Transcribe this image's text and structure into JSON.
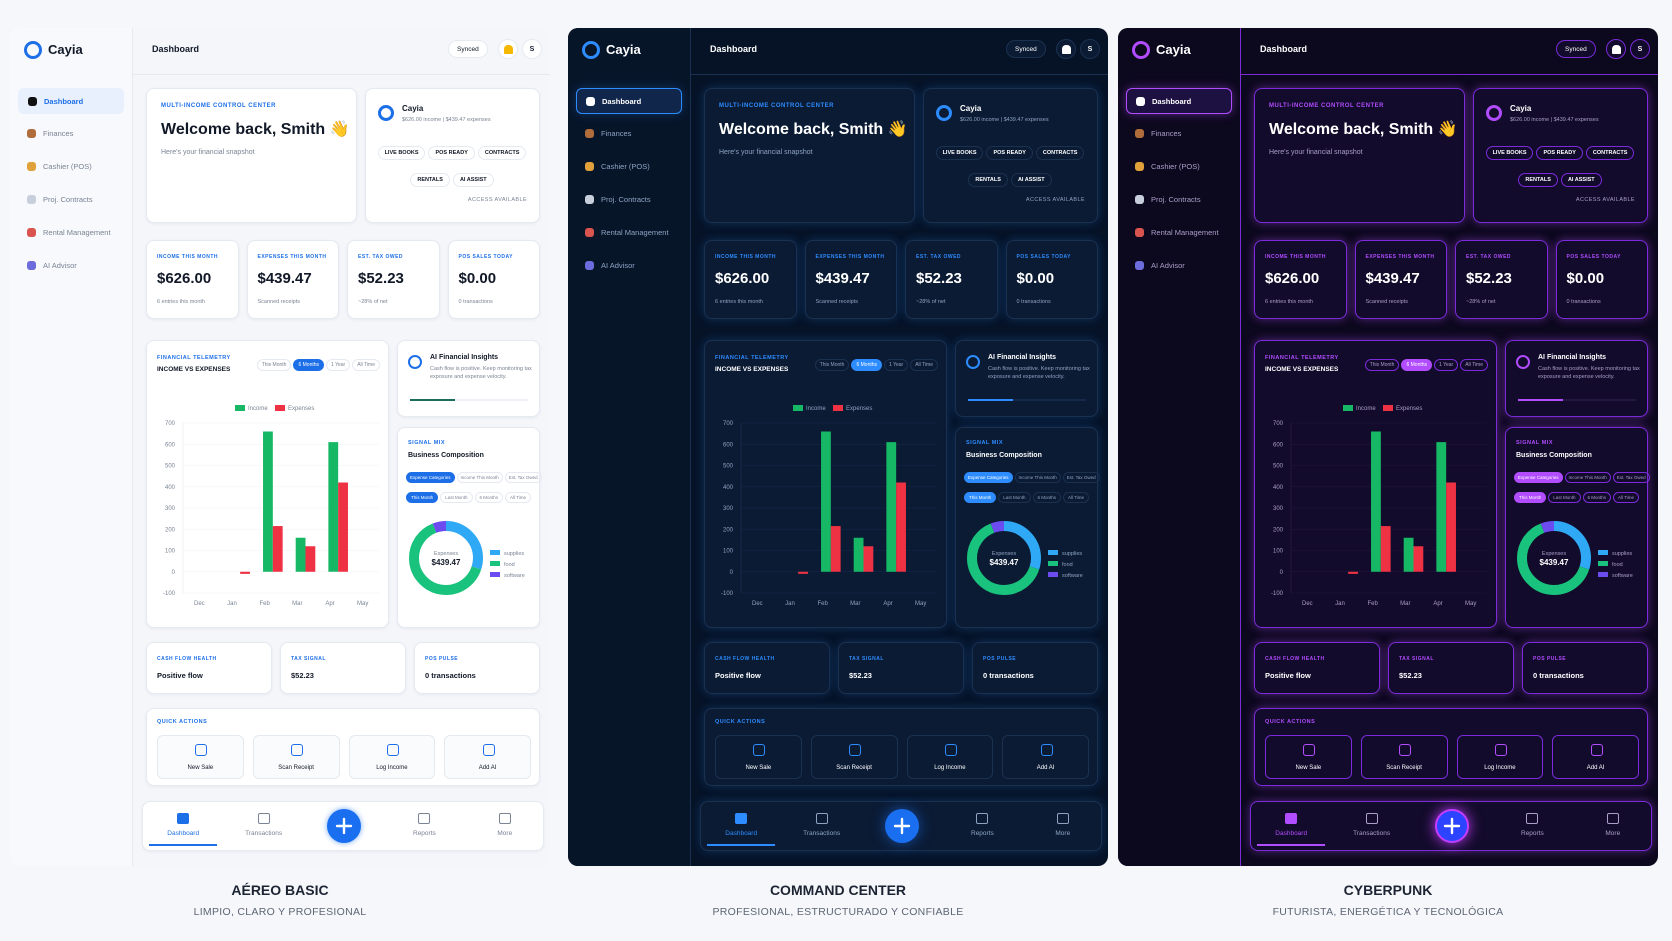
{
  "brand": "Cayia",
  "page_title": "Dashboard",
  "synced": "Synced",
  "avatar": "S",
  "nav": [
    "Dashboard",
    "Finances",
    "Cashier (POS)",
    "Proj. Contracts",
    "Rental Management",
    "AI Advisor"
  ],
  "welcome": {
    "eyebrow": "MULTI-INCOME CONTROL CENTER",
    "title": "Welcome back, Smith 👋",
    "subtitle": "Here's your financial snapshot"
  },
  "account": {
    "name": "Cayia",
    "summary": "$626.00 income | $439.47 expenses",
    "tags": [
      "LIVE BOOKS",
      "POS READY",
      "CONTRACTS",
      "RENTALS",
      "AI ASSIST"
    ],
    "note": "ACCESS AVAILABLE"
  },
  "kpis": [
    {
      "label": "INCOME THIS MONTH",
      "value": "$626.00",
      "note": "6 entries this month"
    },
    {
      "label": "EXPENSES THIS MONTH",
      "value": "$439.47",
      "note": "Scanned receipts"
    },
    {
      "label": "EST. TAX OWED",
      "value": "$52.23",
      "note": "~28% of net"
    },
    {
      "label": "POS SALES TODAY",
      "value": "$0.00",
      "note": "0 transactions"
    }
  ],
  "chart_data": [
    {
      "type": "bar",
      "eyebrow": "FINANCIAL TELEMETRY",
      "title": "INCOME VS EXPENSES",
      "ranges": [
        "This Month",
        "6 Months",
        "1 Year",
        "All Time"
      ],
      "categories": [
        "Dec",
        "Jan",
        "Feb",
        "Mar",
        "Apr",
        "May"
      ],
      "series": [
        {
          "name": "Income",
          "color": "#17b865",
          "values": [
            0,
            0,
            660,
            160,
            610,
            0
          ]
        },
        {
          "name": "Expenses",
          "color": "#ee3143",
          "values": [
            0,
            -10,
            215,
            120,
            420,
            0
          ]
        }
      ],
      "ylim": [
        -100,
        700
      ],
      "yticks": [
        -100,
        0,
        100,
        200,
        300,
        400,
        500,
        600,
        700
      ],
      "grid": true
    },
    {
      "type": "donut",
      "center_label": "Expenses",
      "center_value": "$439.47",
      "categories": [
        "supplies",
        "food",
        "software"
      ],
      "values": [
        30,
        64,
        6
      ],
      "colors": [
        "#2fa9f5",
        "#19c37d",
        "#6c4cf0"
      ]
    }
  ],
  "insights": {
    "title": "AI Financial Insights",
    "text": "Cash flow is positive. Keep monitoring tax exposure and expense velocity."
  },
  "signal_mix": {
    "eyebrow": "SIGNAL MIX",
    "title": "Business Composition",
    "metrics": [
      "Expense Categories",
      "Income This Month",
      "Est. Tax Owed"
    ],
    "ranges": [
      "This Month",
      "Last Month",
      "6 Months",
      "All Time"
    ]
  },
  "health": [
    {
      "label": "CASH FLOW HEALTH",
      "value": "Positive flow"
    },
    {
      "label": "TAX SIGNAL",
      "value": "$52.23"
    },
    {
      "label": "POS PULSE",
      "value": "0 transactions"
    }
  ],
  "quick_actions": {
    "title": "QUICK ACTIONS",
    "items": [
      "New Sale",
      "Scan Receipt",
      "Log Income",
      "Add AI"
    ]
  },
  "bottom_nav": [
    "Dashboard",
    "Transactions",
    "Reports",
    "More"
  ],
  "themes": [
    {
      "name": "AÉREO BASIC",
      "tagline": "LIMPIO, CLARO Y PROFESIONAL"
    },
    {
      "name": "COMMAND CENTER",
      "tagline": "PROFESIONAL, ESTRUCTURADO Y CONFIABLE"
    },
    {
      "name": "CYBERPUNK",
      "tagline": "FUTURISTA, ENERGÉTICA Y TECNOLÓGICA"
    }
  ]
}
